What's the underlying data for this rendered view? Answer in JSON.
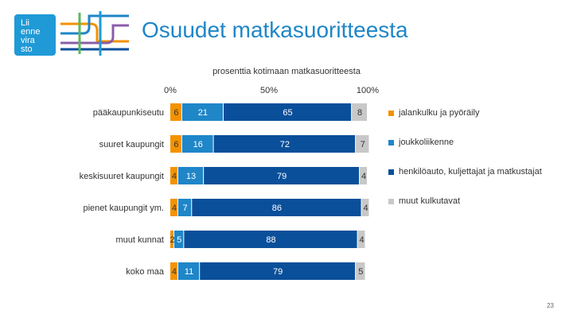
{
  "slide": {
    "title": "Osuudet matkasuoritteesta",
    "logo_lines": [
      "Lii",
      "enne",
      "vira",
      "sto"
    ],
    "page_number": "23"
  },
  "chart_data": {
    "type": "bar",
    "orientation": "horizontal",
    "stacked": "100%",
    "title": "prosenttia kotimaan matkasuoritteesta",
    "xlabel": "",
    "ylabel": "",
    "xlim": [
      0,
      100
    ],
    "x_ticks": [
      "0%",
      "50%",
      "100%"
    ],
    "categories": [
      "pääkaupunkiseutu",
      "suuret kaupungit",
      "keskisuuret kaupungit",
      "pienet kaupungit ym.",
      "muut kunnat",
      "koko maa"
    ],
    "series": [
      {
        "name": "jalankulku ja pyöräily",
        "color": "#f39200",
        "values": [
          6,
          6,
          4,
          4,
          2,
          4
        ]
      },
      {
        "name": "joukkoliikenne",
        "color": "#1f86c8",
        "values": [
          21,
          16,
          13,
          7,
          5,
          11
        ]
      },
      {
        "name": "henkilöauto, kuljettajat ja matkustajat",
        "color": "#0a4f9a",
        "values": [
          65,
          72,
          79,
          86,
          88,
          79
        ]
      },
      {
        "name": "muut kulkutavat",
        "color": "#c8c8c8",
        "values": [
          8,
          7,
          4,
          4,
          4,
          5
        ]
      }
    ],
    "legend_position": "right"
  }
}
